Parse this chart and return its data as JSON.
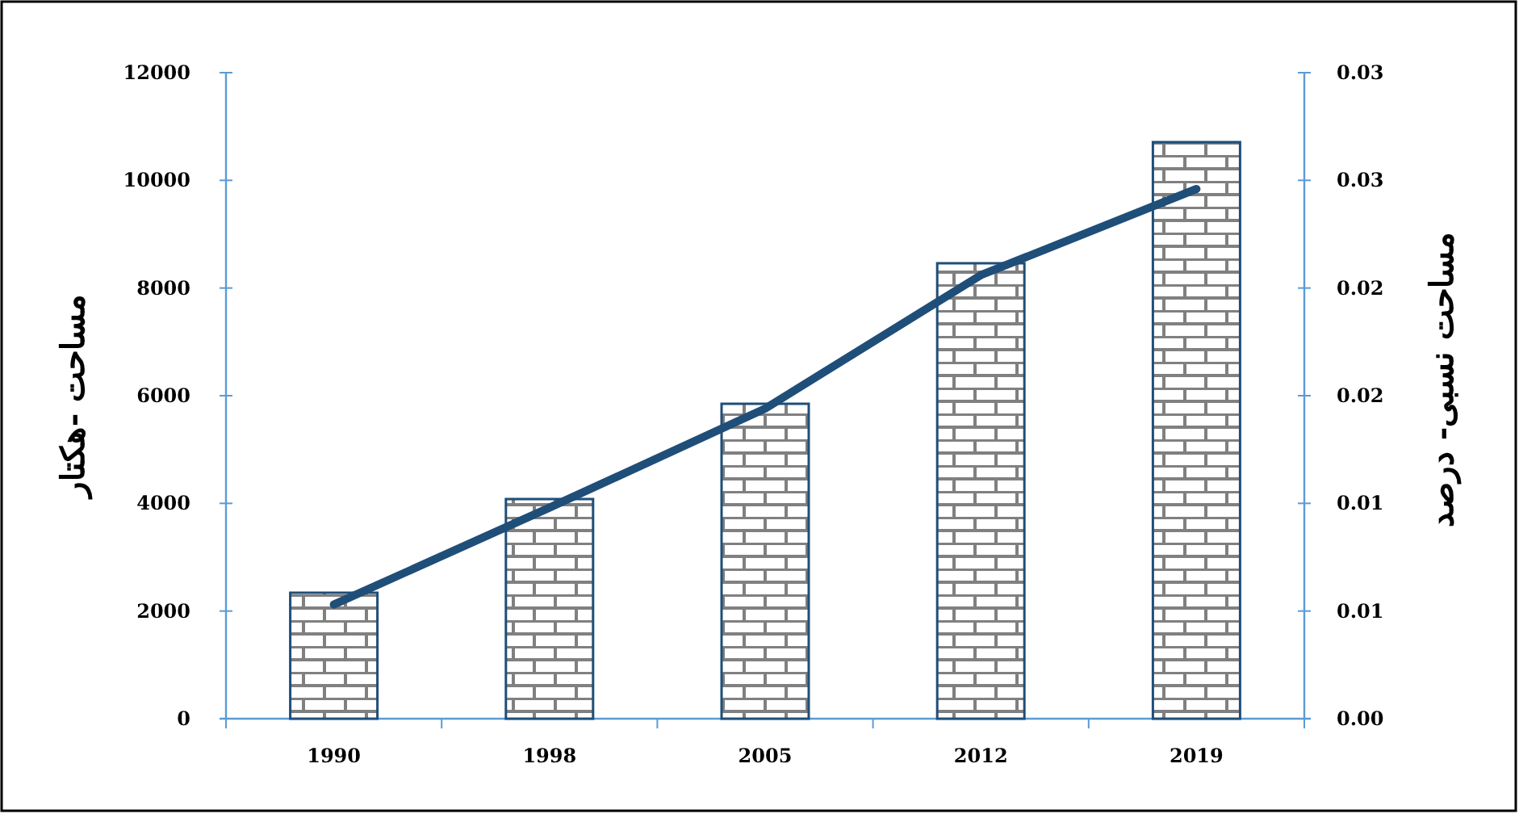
{
  "chart_data": {
    "type": "bar",
    "categories": [
      "1990",
      "1998",
      "2005",
      "2012",
      "2019"
    ],
    "ylabel": "مساحت -هکتار",
    "y2label": "مساحت نسبی- درصد",
    "series": [
      {
        "color": "#1f4e79",
        "values": [
          2340,
          4080,
          5850,
          8460,
          10710
        ]
      },
      {
        "type": "line",
        "axis": "y2",
        "color": "#1f4e79",
        "values": [
          0.0053,
          0.0098,
          0.0144,
          0.0206,
          0.0246
        ]
      }
    ],
    "ylim": [
      0,
      12000
    ],
    "yticks": [
      0,
      2000,
      4000,
      6000,
      8000,
      10000,
      12000
    ],
    "y2lim": [
      0,
      0.03
    ],
    "y2ticks": [
      {
        "value": 0,
        "label": "0.00"
      },
      {
        "value": 0.005,
        "label": "0.01"
      },
      {
        "value": 0.01,
        "label": "0.01"
      },
      {
        "value": 0.015,
        "label": "0.02"
      },
      {
        "value": 0.02,
        "label": "0.02"
      },
      {
        "value": 0.025,
        "label": "0.03"
      },
      {
        "value": 0.03,
        "label": "0.03"
      }
    ],
    "grid": false,
    "marker": "none",
    "line_style": "solid"
  }
}
